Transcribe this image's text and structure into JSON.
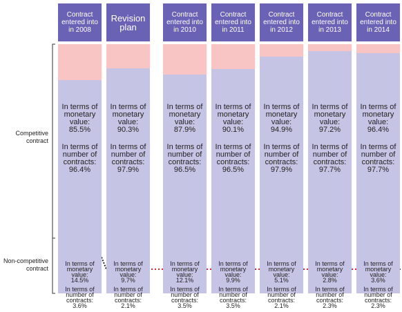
{
  "chart_data": {
    "type": "bar",
    "stacked": true,
    "categories": [
      "Contract entered into in 2008",
      "Revision plan",
      "Contract entered into in 2010",
      "Contract entered into in 2011",
      "Contract entered into in 2012",
      "Contract entered into in 2013",
      "Contract entered into in 2014"
    ],
    "ylim": [
      0,
      100
    ],
    "monetary_label": "In terms of monetary value:",
    "count_label": "In terms of number of contracts:",
    "series": [
      {
        "name": "Competitive contract",
        "color": "#c6c4e4",
        "values": [
          85.5,
          90.3,
          87.9,
          90.1,
          94.9,
          97.2,
          96.4
        ],
        "value_labels": [
          "85.5%",
          "90.3%",
          "87.9%",
          "90.1%",
          "94.9%",
          "97.2%",
          "96.4%"
        ],
        "count_labels": [
          "96.4%",
          "97.9%",
          "96.5%",
          "96.5%",
          "97.9%",
          "97.7%",
          "97.7%"
        ]
      },
      {
        "name": "Non-competitive contract",
        "color": "#f8c4c4",
        "values": [
          14.5,
          9.7,
          12.1,
          9.9,
          5.1,
          2.8,
          3.6
        ],
        "value_labels": [
          "14.5%",
          "9.7%",
          "12.1%",
          "9.9%",
          "5.1%",
          "2.8%",
          "3.6%"
        ],
        "count_labels": [
          "3.6%",
          "2.1%",
          "3.5%",
          "3.5%",
          "2.1%",
          "2.3%",
          "2.3%"
        ]
      }
    ]
  }
}
